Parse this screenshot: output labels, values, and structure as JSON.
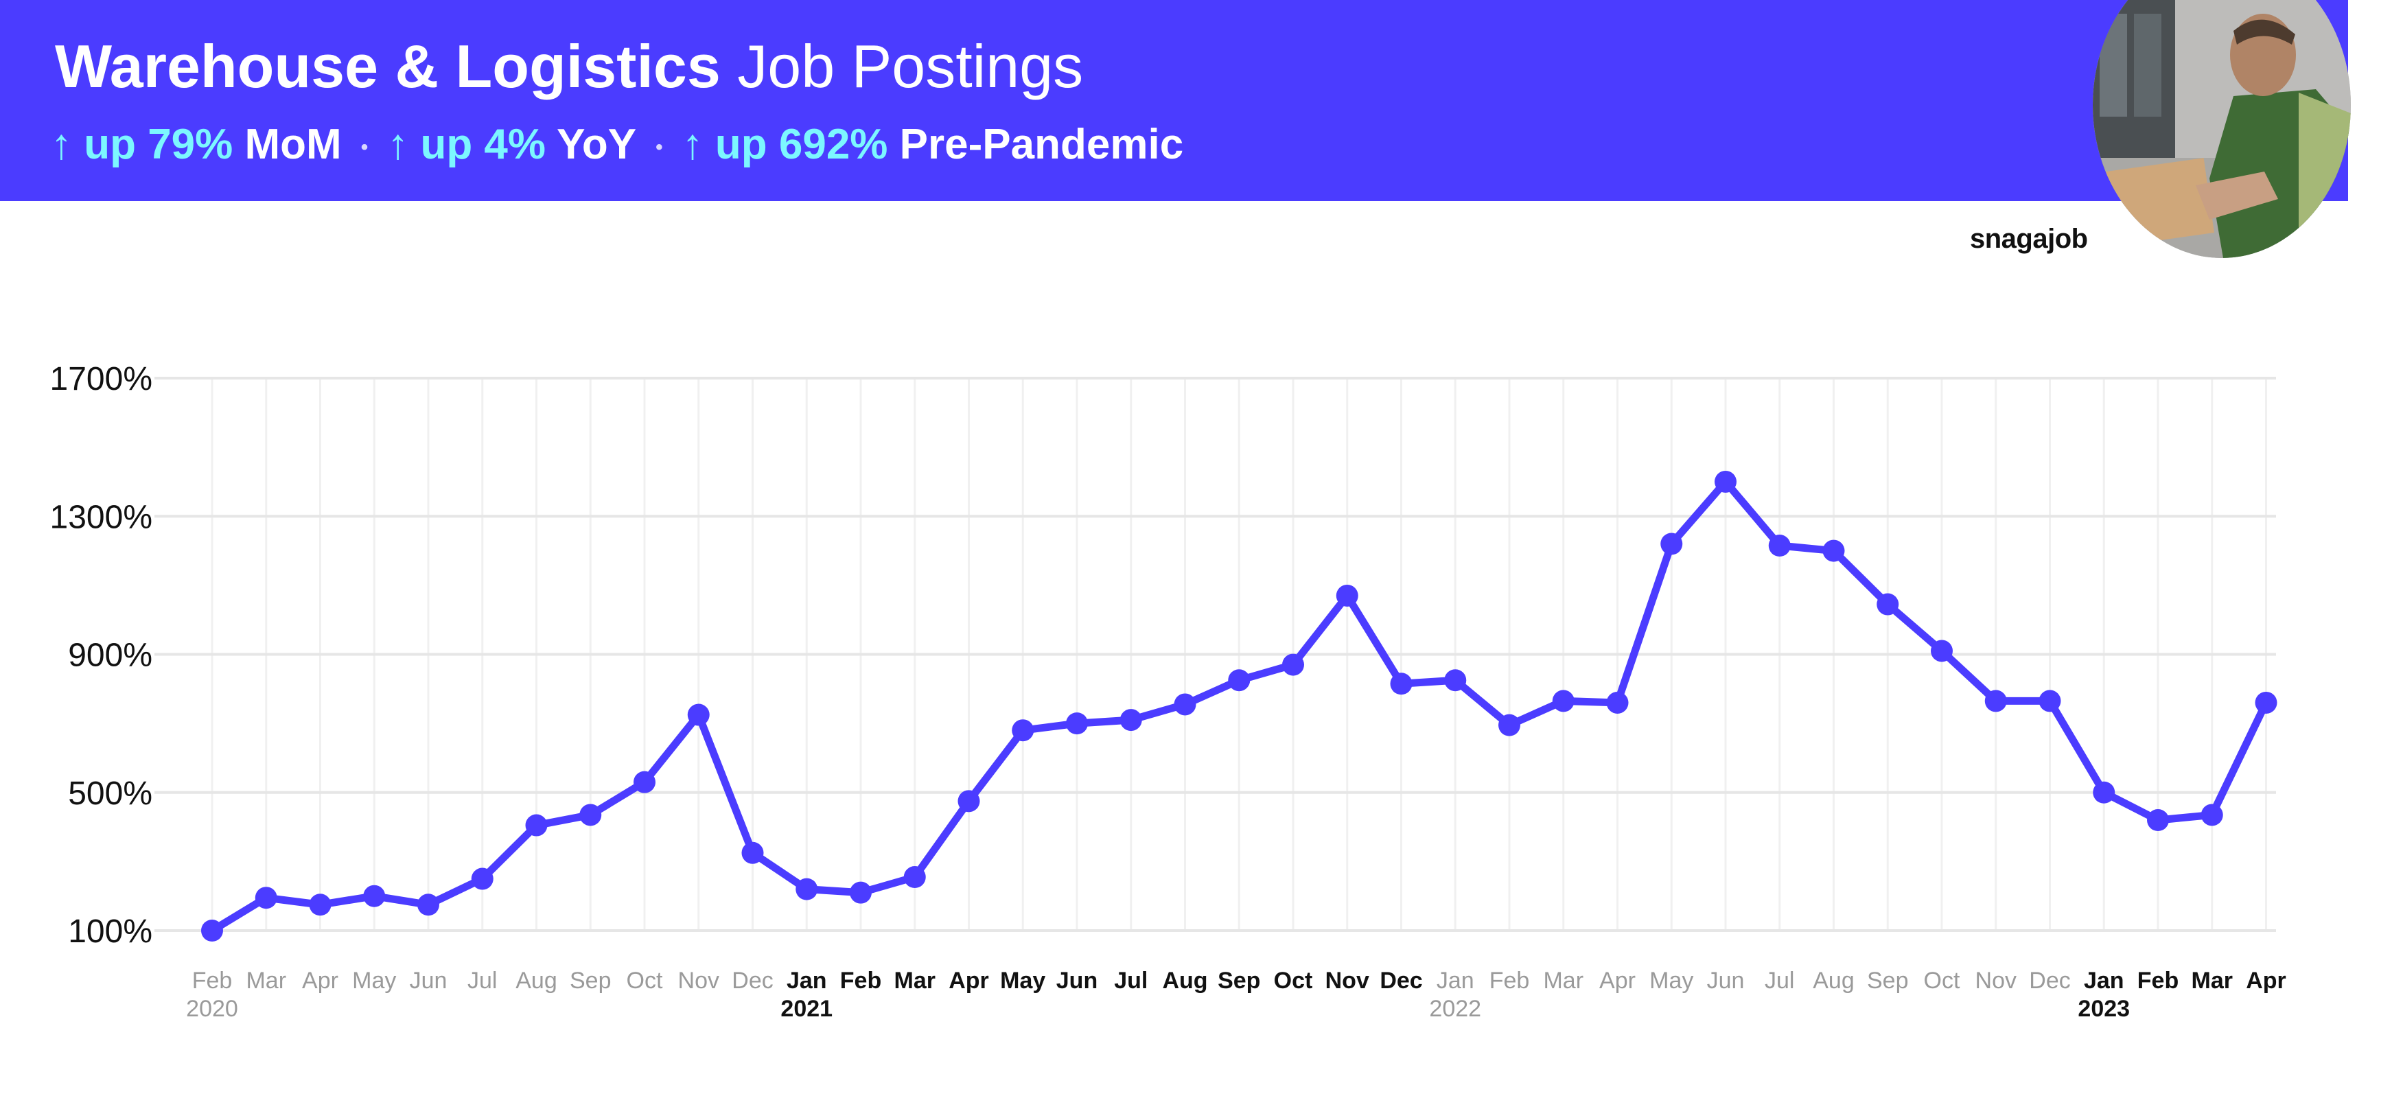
{
  "header": {
    "title_bold": "Warehouse & Logistics",
    "title_light": "Job Postings",
    "stats": [
      {
        "arrow": "↑",
        "value": "up 79%",
        "label": "MoM"
      },
      {
        "arrow": "↑",
        "value": "up 4%",
        "label": "YoY"
      },
      {
        "arrow": "↑",
        "value": "up 692%",
        "label": "Pre-Pandemic"
      }
    ],
    "separator": "•"
  },
  "brand": "snagajob",
  "colors": {
    "banner": "#4b3cff",
    "line": "#4b3cff",
    "accent": "#7cf7ff",
    "grid": "#e6e6e6",
    "tick_muted": "#9a9a9a",
    "tick_strong": "#111111"
  },
  "chart_data": {
    "type": "line",
    "title": "",
    "xlabel": "",
    "ylabel": "",
    "ylim": [
      100,
      1700
    ],
    "y_ticks": [
      100,
      500,
      900,
      1300,
      1700
    ],
    "y_tick_labels": [
      "100%",
      "500%",
      "900%",
      "1300%",
      "1700%"
    ],
    "grid": true,
    "categories": [
      "Feb",
      "Mar",
      "Apr",
      "May",
      "Jun",
      "Jul",
      "Aug",
      "Sep",
      "Oct",
      "Nov",
      "Dec",
      "Jan",
      "Feb",
      "Mar",
      "Apr",
      "May",
      "Jun",
      "Jul",
      "Aug",
      "Sep",
      "Oct",
      "Nov",
      "Dec",
      "Jan",
      "Feb",
      "Mar",
      "Apr",
      "May",
      "Jun",
      "Jul",
      "Aug",
      "Sep",
      "Oct",
      "Nov",
      "Dec",
      "Jan",
      "Feb",
      "Mar",
      "Apr"
    ],
    "year_labels": [
      {
        "index": 0,
        "label": "2020"
      },
      {
        "index": 11,
        "label": "2021"
      },
      {
        "index": 23,
        "label": "2022"
      },
      {
        "index": 35,
        "label": "2023"
      }
    ],
    "strong_indices": [
      11,
      12,
      13,
      14,
      15,
      16,
      17,
      18,
      19,
      20,
      21,
      22,
      35,
      36,
      37,
      38
    ],
    "series": [
      {
        "values": [
          100,
          195,
          175,
          200,
          175,
          250,
          405,
          435,
          530,
          725,
          325,
          220,
          210,
          255,
          475,
          680,
          700,
          710,
          755,
          825,
          870,
          1070,
          815,
          825,
          695,
          765,
          760,
          1220,
          1400,
          1215,
          1200,
          1045,
          910,
          765,
          765,
          500,
          420,
          435,
          760
        ]
      }
    ]
  }
}
